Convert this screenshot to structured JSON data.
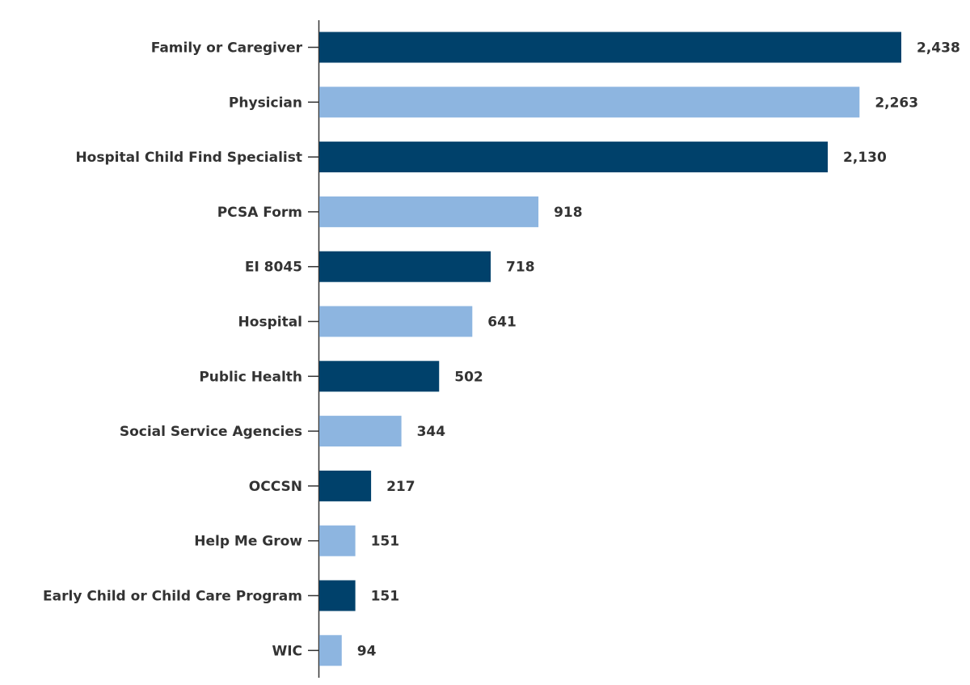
{
  "chart_data": {
    "type": "bar",
    "orientation": "horizontal",
    "categories": [
      "Family or Caregiver",
      "Physician",
      "Hospital Child Find Specialist",
      "PCSA Form",
      "EI 8045",
      "Hospital",
      "Public Health",
      "Social Service Agencies",
      "OCCSN",
      "Help Me Grow",
      "Early Child or Child Care Program",
      "WIC"
    ],
    "values": [
      2438,
      2263,
      2130,
      918,
      718,
      641,
      502,
      344,
      217,
      151,
      151,
      94
    ],
    "value_labels": [
      "2,438",
      "2,263",
      "2,130",
      "918",
      "718",
      "641",
      "502",
      "344",
      "217",
      "151",
      "151",
      "94"
    ],
    "colors": [
      "#00416b",
      "#8db5e0"
    ],
    "color_pattern": "alternating",
    "xlim": [
      0,
      2438
    ],
    "grid": false,
    "legend": "none",
    "title": "",
    "xlabel": "",
    "ylabel": ""
  }
}
